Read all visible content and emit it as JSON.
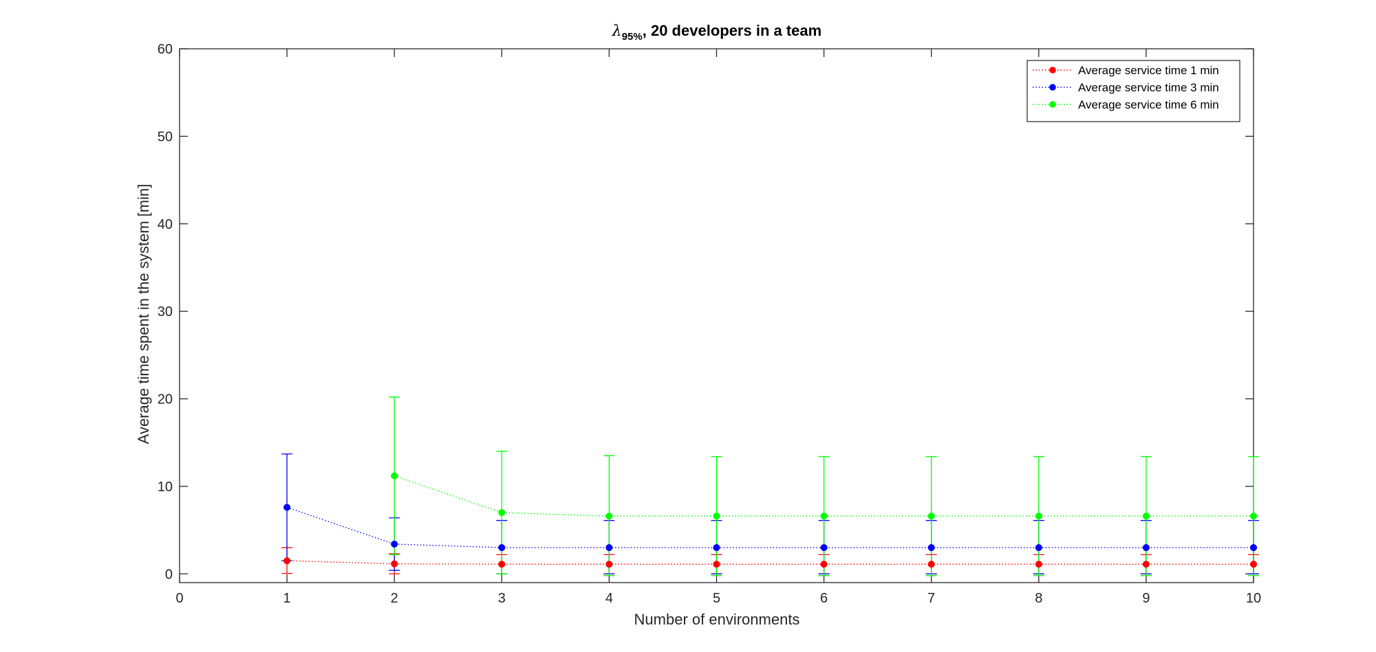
{
  "chart_data": {
    "type": "line",
    "title": {
      "symbol": "λ",
      "subscript": "95%",
      "rest": ", 20 developers in a team"
    },
    "xlabel": "Number of environments",
    "ylabel": "Average time spent in the system [min]",
    "xlim": [
      0,
      10
    ],
    "ylim": [
      -1,
      60
    ],
    "xticks": [
      "0",
      "1",
      "2",
      "3",
      "4",
      "5",
      "6",
      "7",
      "8",
      "9",
      "10"
    ],
    "yticks": [
      "0",
      "10",
      "20",
      "30",
      "40",
      "50",
      "60"
    ],
    "grid": false,
    "legend_position": "top-right",
    "series": [
      {
        "name": "Average service time 1 min",
        "color": "#ff0000",
        "line_style": "dotted",
        "x": [
          1,
          2,
          3,
          4,
          5,
          6,
          7,
          8,
          9,
          10
        ],
        "y": [
          1.5,
          1.15,
          1.1,
          1.1,
          1.1,
          1.1,
          1.1,
          1.1,
          1.1,
          1.1
        ],
        "error_low": [
          0.05,
          0.0,
          0.0,
          0.0,
          0.0,
          0.0,
          0.0,
          0.0,
          0.0,
          0.0
        ],
        "error_high": [
          3.0,
          2.3,
          2.2,
          2.2,
          2.2,
          2.2,
          2.2,
          2.2,
          2.2,
          2.2
        ]
      },
      {
        "name": "Average service time 3 min",
        "color": "#0000ff",
        "line_style": "dotted",
        "x": [
          1,
          2,
          3,
          4,
          5,
          6,
          7,
          8,
          9,
          10
        ],
        "y": [
          7.6,
          3.4,
          3.0,
          3.0,
          3.0,
          3.0,
          3.0,
          3.0,
          3.0,
          3.0
        ],
        "error_low": [
          1.5,
          0.4,
          0.0,
          0.0,
          0.0,
          0.0,
          0.0,
          0.0,
          0.0,
          0.0
        ],
        "error_high": [
          13.7,
          6.4,
          6.1,
          6.1,
          6.1,
          6.1,
          6.1,
          6.1,
          6.1,
          6.1
        ]
      },
      {
        "name": "Average service time 6 min",
        "color": "#00ff00",
        "line_style": "dotted",
        "x": [
          2,
          3,
          4,
          5,
          6,
          7,
          8,
          9,
          10
        ],
        "y": [
          11.2,
          7.0,
          6.6,
          6.6,
          6.6,
          6.6,
          6.6,
          6.6,
          6.6
        ],
        "error_low": [
          2.2,
          0.0,
          -0.2,
          -0.2,
          -0.2,
          -0.2,
          -0.2,
          -0.2,
          -0.2
        ],
        "error_high": [
          20.2,
          14.0,
          13.5,
          13.4,
          13.4,
          13.4,
          13.4,
          13.4,
          13.4
        ]
      }
    ]
  }
}
